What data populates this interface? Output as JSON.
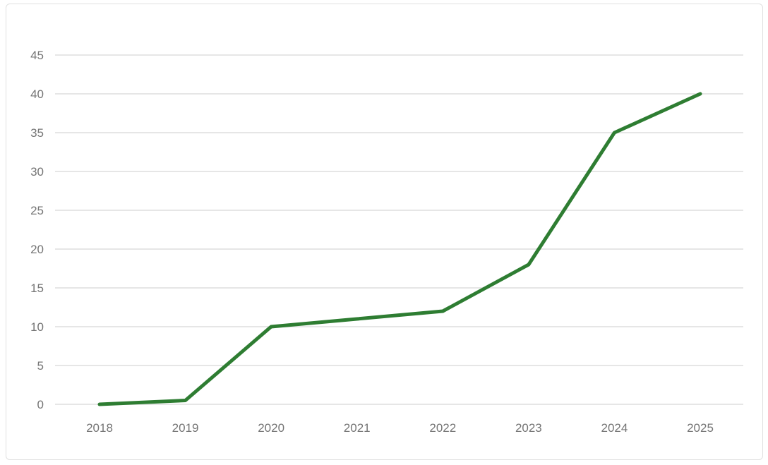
{
  "chart_data": {
    "type": "line",
    "title": "",
    "xlabel": "",
    "ylabel": "",
    "categories": [
      "2018",
      "2019",
      "2020",
      "2021",
      "2022",
      "2023",
      "2024",
      "2025"
    ],
    "values": [
      0,
      0.5,
      10,
      11,
      12,
      18,
      35,
      40
    ],
    "yticks": [
      0,
      5,
      10,
      15,
      20,
      25,
      30,
      35,
      40,
      45
    ],
    "ylim": [
      0,
      45
    ],
    "grid": "horizontal-only",
    "legend": "none",
    "colors": {
      "line": "#2e7d32",
      "gridline": "#e6e6e6",
      "tick_label": "#757575",
      "panel_border": "#e0e0e0",
      "background": "#ffffff"
    },
    "line_width": 5,
    "tick_font_size": 17
  }
}
